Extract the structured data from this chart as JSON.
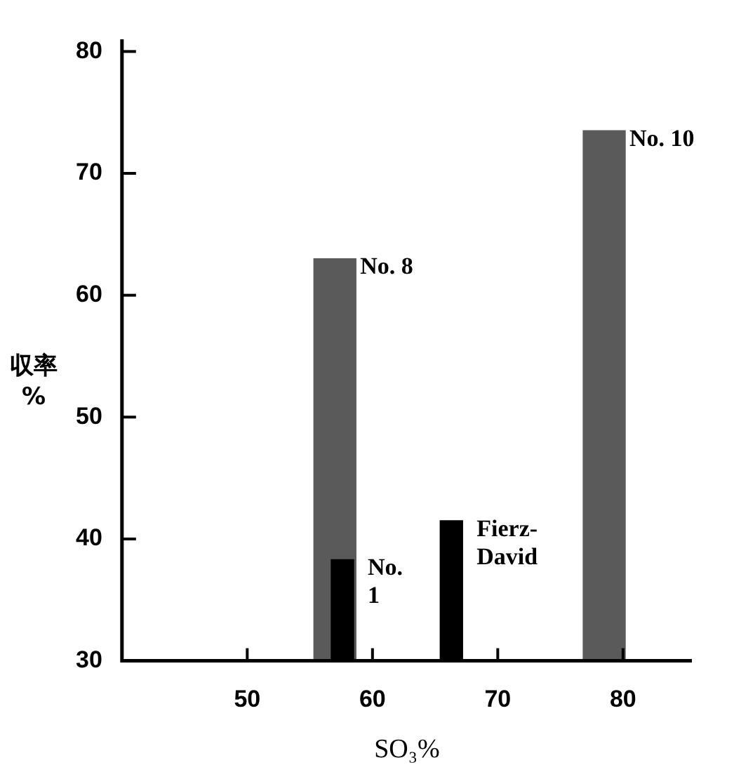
{
  "chart_data": {
    "type": "bar",
    "xlabel": "SO₃%",
    "ylabel": "収率%",
    "xlim": [
      40,
      85.5
    ],
    "xticks": [
      50,
      60,
      70,
      80
    ],
    "ylim": [
      30,
      81
    ],
    "yticks": [
      30,
      40,
      50,
      60,
      70,
      80
    ],
    "series": [
      {
        "color": "#5a5a5a",
        "x": [
          57,
          78.5
        ],
        "values": [
          63,
          73.5
        ]
      },
      {
        "color": "#000000",
        "x": [
          57.6,
          66.3
        ],
        "values": [
          38.3,
          41.5
        ]
      }
    ],
    "annotations": [
      {
        "text": "No. 8",
        "x": 57,
        "y": 63
      },
      {
        "text": "No. 10",
        "x": 78.5,
        "y": 73.5
      },
      {
        "text": "No. 1",
        "x": 57.6,
        "y": 38.3
      },
      {
        "text": "Fierz-David",
        "x": 66.3,
        "y": 41.5
      }
    ]
  }
}
